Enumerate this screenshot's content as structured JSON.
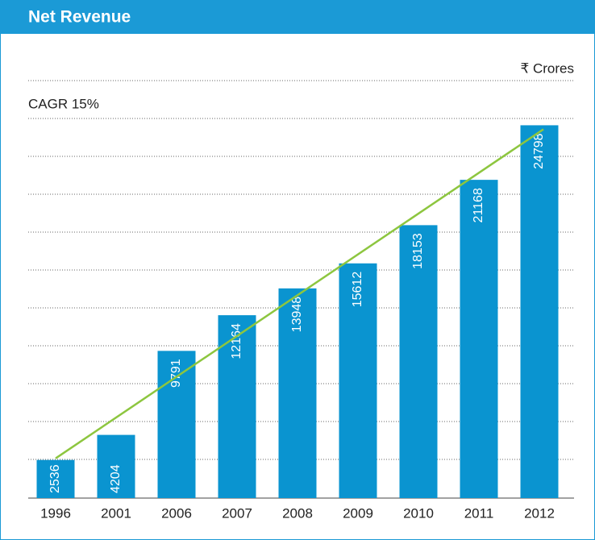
{
  "chart_data": {
    "type": "bar",
    "title": "Net Revenue",
    "unit": "₹ Crores",
    "annotation": "CAGR 15%",
    "categories": [
      "1996",
      "2001",
      "2006",
      "2007",
      "2008",
      "2009",
      "2010",
      "2011",
      "2012"
    ],
    "values": [
      2536,
      4204,
      9791,
      12164,
      13948,
      15612,
      18153,
      21168,
      24798
    ],
    "color": "#0a94d0",
    "trend_color": "#8dc63f",
    "header_color": "#1b9ad6",
    "ylim": [
      0,
      26000
    ],
    "grid": true
  }
}
